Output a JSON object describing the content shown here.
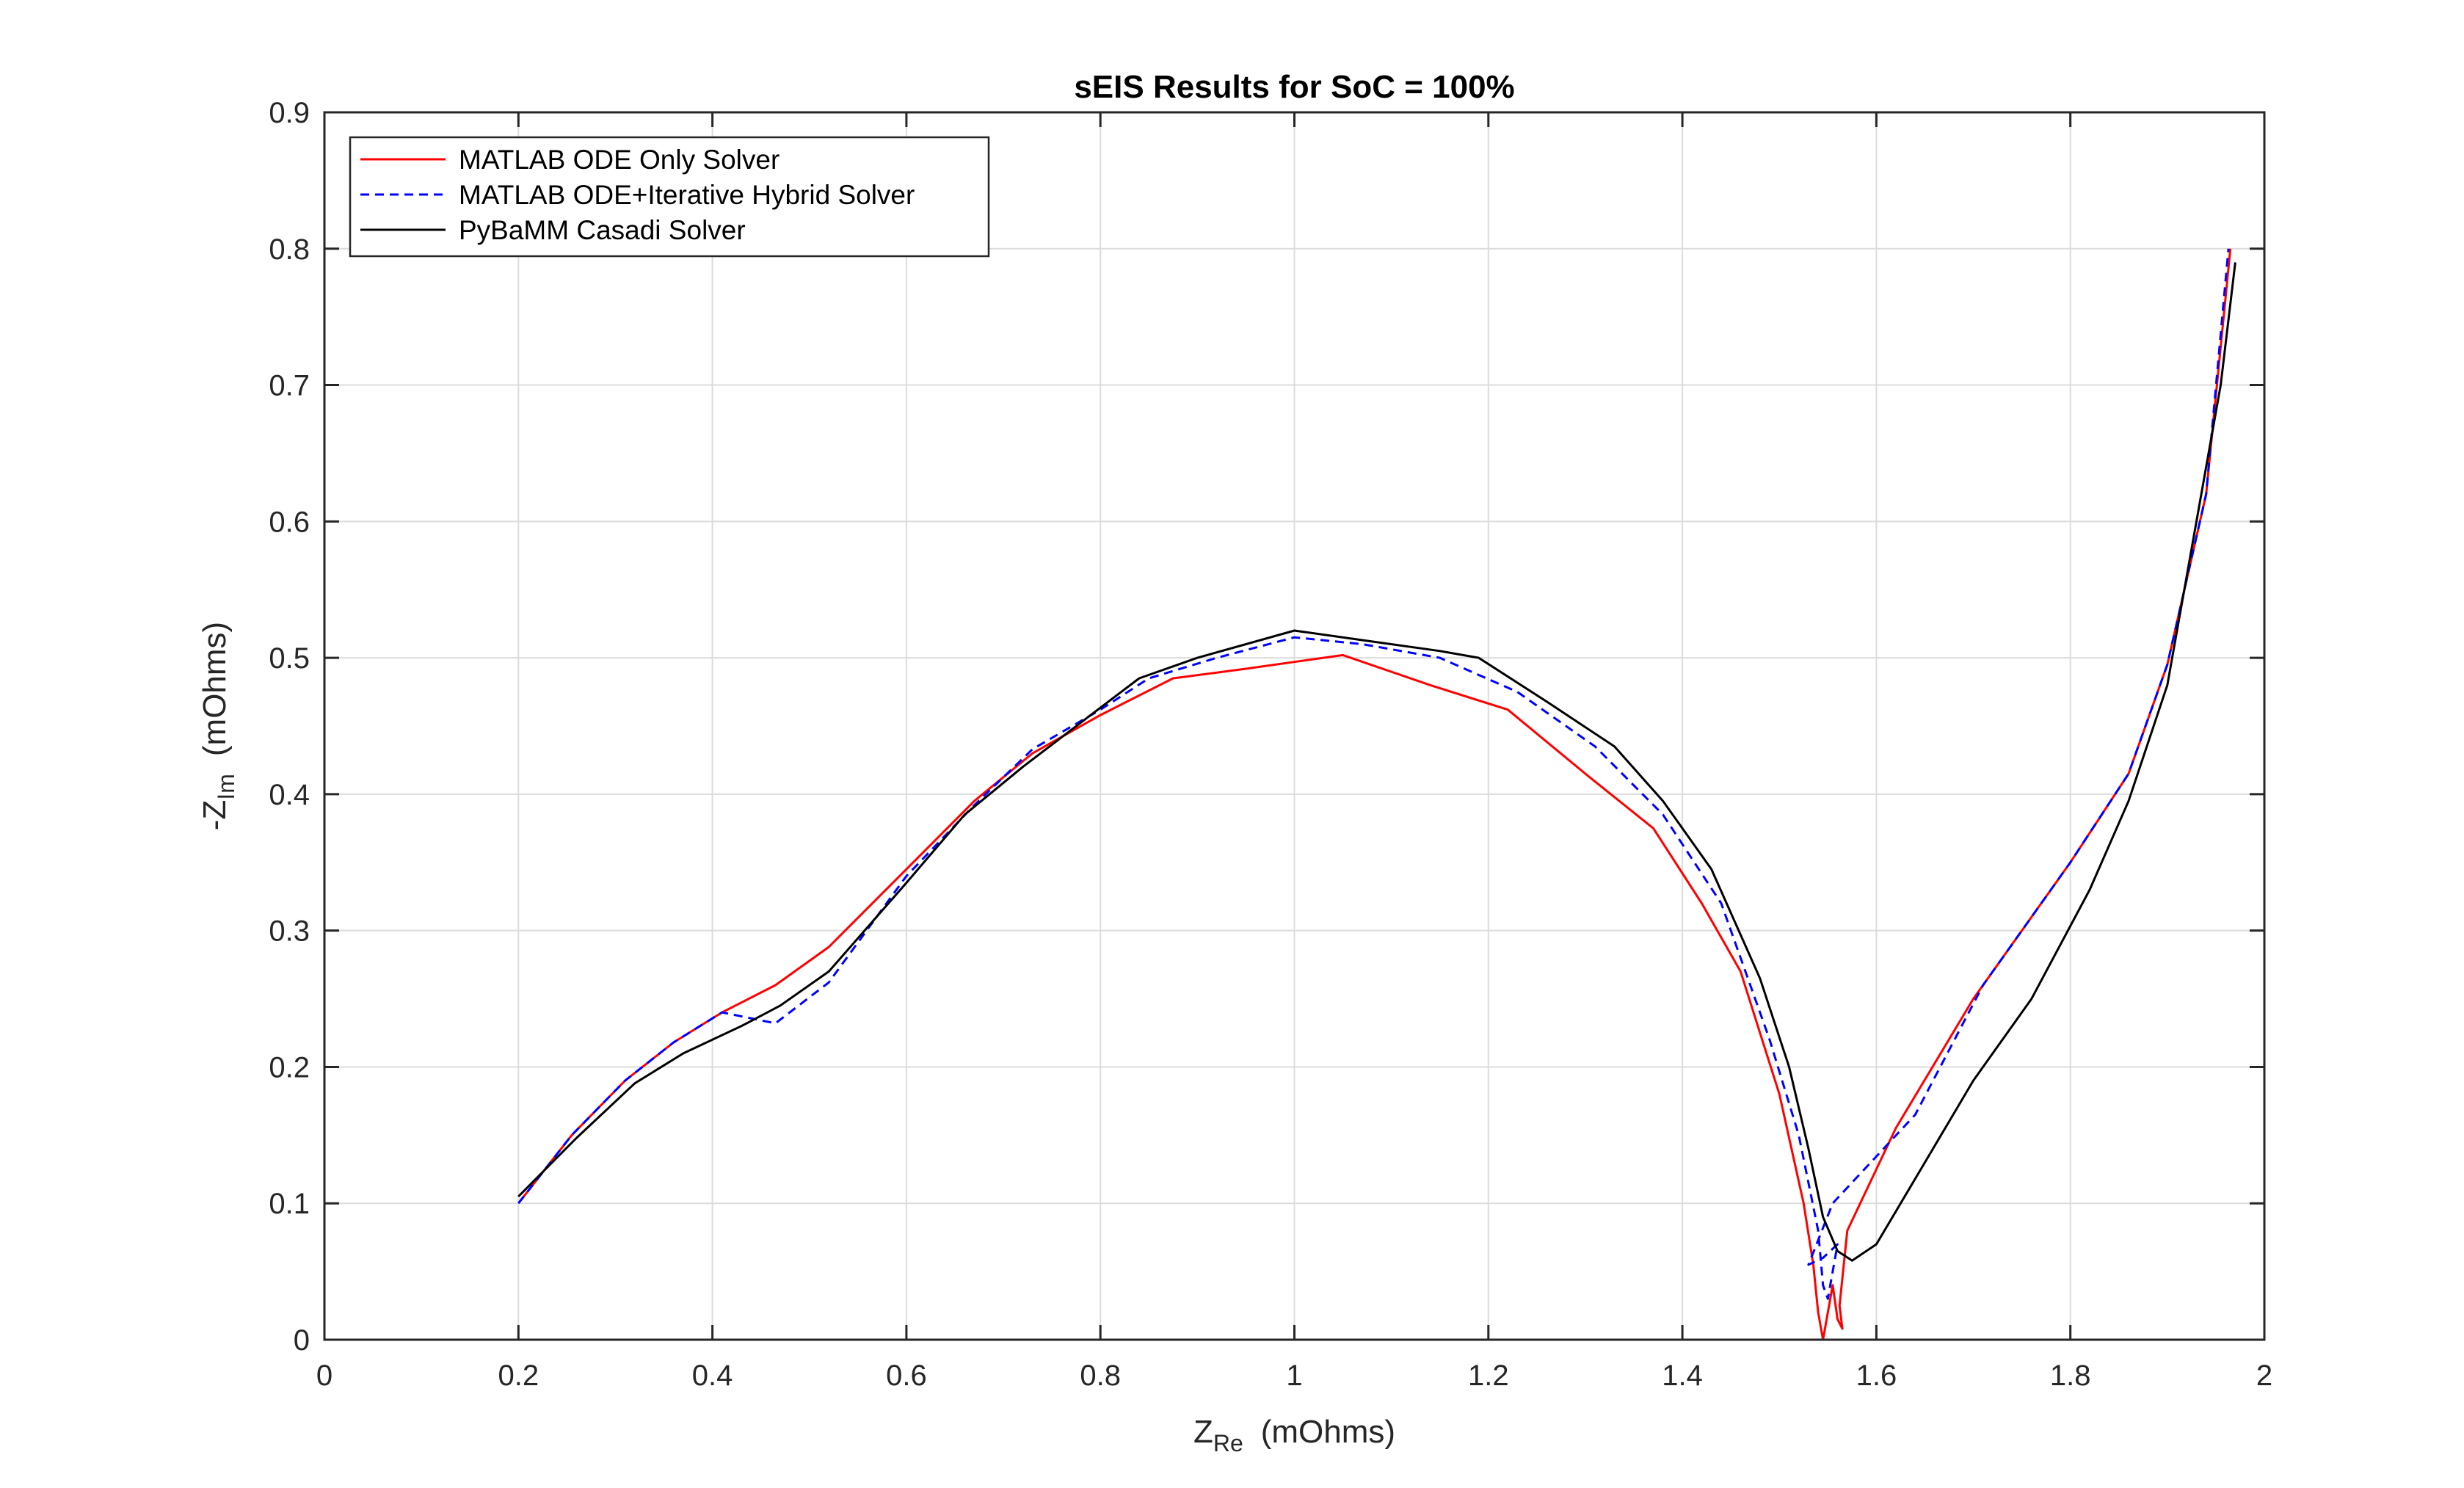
{
  "chart_data": {
    "type": "line",
    "title": "sEIS Results for SoC = 100%",
    "xlabel": "Z",
    "xlabel_sub": "Re",
    "xlabel_unit": "(mOhms)",
    "ylabel": "-Z",
    "ylabel_sub": "Im",
    "ylabel_unit": "(mOhms)",
    "xlim": [
      0,
      2
    ],
    "ylim": [
      0,
      0.9
    ],
    "xticks": [
      0,
      0.2,
      0.4,
      0.6,
      0.8,
      1,
      1.2,
      1.4,
      1.6,
      1.8,
      2
    ],
    "xtick_labels": [
      "0",
      "0.2",
      "0.4",
      "0.6",
      "0.8",
      "1",
      "1.2",
      "1.4",
      "1.6",
      "1.8",
      "2"
    ],
    "yticks": [
      0,
      0.1,
      0.2,
      0.3,
      0.4,
      0.5,
      0.6,
      0.7,
      0.8,
      0.9
    ],
    "ytick_labels": [
      "0",
      "0.1",
      "0.2",
      "0.3",
      "0.4",
      "0.5",
      "0.6",
      "0.7",
      "0.8",
      "0.9"
    ],
    "grid": true,
    "legend_position": "top-left",
    "series": [
      {
        "name": "MATLAB ODE Only Solver",
        "color": "#ff0000",
        "dash": "solid",
        "points": [
          [
            0.2,
            0.1
          ],
          [
            0.255,
            0.15
          ],
          [
            0.31,
            0.19
          ],
          [
            0.36,
            0.218
          ],
          [
            0.41,
            0.24
          ],
          [
            0.465,
            0.26
          ],
          [
            0.52,
            0.288
          ],
          [
            0.6,
            0.345
          ],
          [
            0.67,
            0.395
          ],
          [
            0.73,
            0.43
          ],
          [
            0.8,
            0.458
          ],
          [
            0.875,
            0.485
          ],
          [
            0.95,
            0.492
          ],
          [
            1.01,
            0.498
          ],
          [
            1.05,
            0.502
          ],
          [
            1.14,
            0.48
          ],
          [
            1.22,
            0.462
          ],
          [
            1.3,
            0.415
          ],
          [
            1.37,
            0.375
          ],
          [
            1.42,
            0.32
          ],
          [
            1.46,
            0.27
          ],
          [
            1.5,
            0.18
          ],
          [
            1.525,
            0.1
          ],
          [
            1.535,
            0.055
          ],
          [
            1.54,
            0.02
          ],
          [
            1.545,
            0.0
          ],
          [
            1.55,
            0.02
          ],
          [
            1.555,
            0.04
          ],
          [
            1.56,
            0.015
          ],
          [
            1.565,
            0.008
          ],
          [
            1.562,
            0.025
          ],
          [
            1.57,
            0.08
          ],
          [
            1.62,
            0.155
          ],
          [
            1.7,
            0.25
          ],
          [
            1.8,
            0.35
          ],
          [
            1.86,
            0.415
          ],
          [
            1.9,
            0.495
          ],
          [
            1.94,
            0.62
          ],
          [
            1.965,
            0.8
          ]
        ]
      },
      {
        "name": "MATLAB ODE+Iterative Hybrid Solver",
        "color": "#0000ff",
        "dash": "dashed",
        "points": [
          [
            0.2,
            0.1
          ],
          [
            0.255,
            0.15
          ],
          [
            0.31,
            0.19
          ],
          [
            0.36,
            0.218
          ],
          [
            0.41,
            0.24
          ],
          [
            0.465,
            0.232
          ],
          [
            0.52,
            0.262
          ],
          [
            0.6,
            0.34
          ],
          [
            0.67,
            0.392
          ],
          [
            0.73,
            0.433
          ],
          [
            0.8,
            0.462
          ],
          [
            0.85,
            0.485
          ],
          [
            0.92,
            0.5
          ],
          [
            1.0,
            0.515
          ],
          [
            1.07,
            0.51
          ],
          [
            1.15,
            0.5
          ],
          [
            1.23,
            0.475
          ],
          [
            1.31,
            0.435
          ],
          [
            1.38,
            0.385
          ],
          [
            1.44,
            0.32
          ],
          [
            1.49,
            0.22
          ],
          [
            1.52,
            0.15
          ],
          [
            1.54,
            0.08
          ],
          [
            1.545,
            0.04
          ],
          [
            1.55,
            0.03
          ],
          [
            1.555,
            0.05
          ],
          [
            1.56,
            0.07
          ],
          [
            1.545,
            0.06
          ],
          [
            1.53,
            0.055
          ],
          [
            1.555,
            0.1
          ],
          [
            1.64,
            0.165
          ],
          [
            1.71,
            0.26
          ],
          [
            1.8,
            0.35
          ],
          [
            1.86,
            0.415
          ],
          [
            1.9,
            0.495
          ],
          [
            1.94,
            0.62
          ],
          [
            1.963,
            0.8
          ]
        ]
      },
      {
        "name": "PyBaMM Casadi Solver",
        "color": "#000000",
        "dash": "solid",
        "points": [
          [
            0.2,
            0.105
          ],
          [
            0.26,
            0.148
          ],
          [
            0.32,
            0.188
          ],
          [
            0.37,
            0.21
          ],
          [
            0.43,
            0.23
          ],
          [
            0.47,
            0.245
          ],
          [
            0.52,
            0.27
          ],
          [
            0.6,
            0.335
          ],
          [
            0.66,
            0.385
          ],
          [
            0.72,
            0.42
          ],
          [
            0.79,
            0.458
          ],
          [
            0.84,
            0.485
          ],
          [
            0.9,
            0.5
          ],
          [
            1.0,
            0.52
          ],
          [
            1.07,
            0.513
          ],
          [
            1.15,
            0.505
          ],
          [
            1.19,
            0.5
          ],
          [
            1.26,
            0.468
          ],
          [
            1.33,
            0.435
          ],
          [
            1.38,
            0.395
          ],
          [
            1.43,
            0.345
          ],
          [
            1.48,
            0.265
          ],
          [
            1.51,
            0.2
          ],
          [
            1.53,
            0.14
          ],
          [
            1.545,
            0.09
          ],
          [
            1.56,
            0.065
          ],
          [
            1.575,
            0.058
          ],
          [
            1.6,
            0.07
          ],
          [
            1.65,
            0.13
          ],
          [
            1.7,
            0.19
          ],
          [
            1.76,
            0.25
          ],
          [
            1.82,
            0.33
          ],
          [
            1.86,
            0.395
          ],
          [
            1.9,
            0.48
          ],
          [
            1.93,
            0.6
          ],
          [
            1.955,
            0.7
          ],
          [
            1.97,
            0.79
          ]
        ]
      }
    ]
  }
}
